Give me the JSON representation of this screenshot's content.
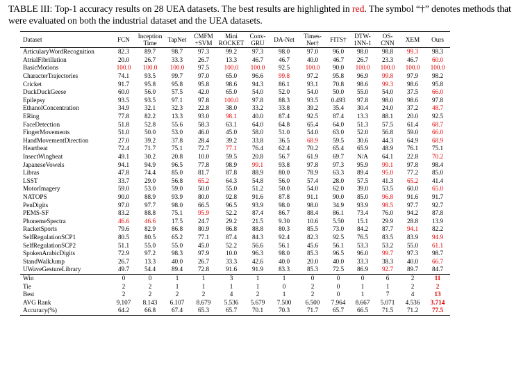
{
  "caption": {
    "text1": "TABLE III: Top-1 accuracy results on 28 UEA datasets. The best results are highlighted in ",
    "red_word": "red",
    "text2": ". The symbol “†” denotes methods that were evaluated on both the industrial dataset and the UEA datasets."
  },
  "header": [
    "Dataset",
    "FCN",
    "Inception\nTime",
    "TapNet",
    "CMFM\n+SVM",
    "Mini\nROCKET",
    "Conv-\nGRU",
    "DA-Net",
    "Times-\nNet†",
    "FITS†",
    "DTW-\n1NN-1",
    "OS-\nCNN",
    "XEM",
    "Ours"
  ],
  "rows": [
    {
      "name": "ArticularyWordRecognition",
      "v": [
        "82.3",
        "89.7",
        "98.7",
        "97.3",
        "99.2",
        "97.3",
        "98.0",
        "97.0",
        "96.0",
        "98.0",
        "98.8",
        "99.3",
        "98.3"
      ],
      "red": [
        11
      ]
    },
    {
      "name": "AtrialFibrillation",
      "v": [
        "20.0",
        "26.7",
        "33.3",
        "26.7",
        "13.3",
        "46.7",
        "46.7",
        "40.0",
        "46.7",
        "26.7",
        "23.3",
        "46.7",
        "60.0"
      ],
      "red": [
        12
      ]
    },
    {
      "name": "BasicMotions",
      "v": [
        "100.0",
        "100.0",
        "100.0",
        "97.5",
        "100.0",
        "100.0",
        "92.5",
        "100.0",
        "90.0",
        "100.0",
        "100.0",
        "100.0",
        "100.0"
      ],
      "red": [
        0,
        1,
        2,
        4,
        5,
        7,
        9,
        10,
        11,
        12
      ]
    },
    {
      "name": "CharacterTrajectories",
      "v": [
        "74.1",
        "93.5",
        "99.7",
        "97.0",
        "65.0",
        "96.6",
        "99.8",
        "97.2",
        "95.8",
        "96.9",
        "99.8",
        "97.9",
        "98.2"
      ],
      "red": [
        6,
        10
      ]
    },
    {
      "name": "Cricket",
      "v": [
        "91.7",
        "95.8",
        "95.8",
        "95.8",
        "98.6",
        "94.3",
        "86.1",
        "93.1",
        "70.8",
        "98.6",
        "99.3",
        "98.6",
        "95.8"
      ],
      "red": [
        10
      ]
    },
    {
      "name": "DuckDuckGeese",
      "v": [
        "60.0",
        "56.0",
        "57.5",
        "42.0",
        "65.0",
        "54.0",
        "52.0",
        "54.0",
        "50.0",
        "55.0",
        "54.0",
        "37.5",
        "66.0"
      ],
      "red": [
        12
      ]
    },
    {
      "name": "Epilepsy",
      "v": [
        "93.5",
        "93.5",
        "97.1",
        "97.8",
        "100.0",
        "97.8",
        "88.3",
        "93.5",
        "0.493",
        "97.8",
        "98.0",
        "98.6",
        "97.8"
      ],
      "red": [
        4
      ]
    },
    {
      "name": "EthanolConcentration",
      "v": [
        "34.9",
        "32.1",
        "32.3",
        "22.8",
        "38.0",
        "33.2",
        "33.8",
        "39.2",
        "35.4",
        "30.4",
        "24.0",
        "37.2",
        "48.7"
      ],
      "red": [
        12
      ]
    },
    {
      "name": "ERing",
      "v": [
        "77.8",
        "82.2",
        "13.3",
        "93.0",
        "98.1",
        "40.0",
        "87.4",
        "92.5",
        "87.4",
        "13.3",
        "88.1",
        "20.0",
        "92.5"
      ],
      "red": [
        4
      ]
    },
    {
      "name": "FaceDetection",
      "v": [
        "51.8",
        "52.8",
        "55.6",
        "58.3",
        "63.1",
        "64.0",
        "64.8",
        "65.4",
        "64.0",
        "51.3",
        "57.5",
        "61.4",
        "68.7"
      ],
      "red": [
        12
      ]
    },
    {
      "name": "FingerMovements",
      "v": [
        "51.0",
        "50.0",
        "53.0",
        "46.0",
        "45.0",
        "58.0",
        "51.0",
        "54.0",
        "63.0",
        "52.0",
        "56.8",
        "59.0",
        "66.0"
      ],
      "red": [
        12
      ]
    },
    {
      "name": "HandMovementDirection",
      "v": [
        "27.0",
        "39.2",
        "37.8",
        "28.4",
        "39.2",
        "33.8",
        "36.5",
        "68.9",
        "59.5",
        "30.6",
        "44.3",
        "64.9",
        "68.9"
      ],
      "red": [
        7,
        12
      ]
    },
    {
      "name": "Heartbeat",
      "v": [
        "72.4",
        "71.7",
        "75.1",
        "72.7",
        "77.1",
        "76.4",
        "62.4",
        "70.2",
        "65.4",
        "65.9",
        "48.9",
        "76.1",
        "75.1"
      ],
      "red": [
        4
      ]
    },
    {
      "name": "InsectWingbeat",
      "v": [
        "49.1",
        "30.2",
        "20.8",
        "10.0",
        "59.5",
        "20.8",
        "56.7",
        "61.9",
        "69.7",
        "N/A",
        "64.1",
        "22.8",
        "70.2"
      ],
      "red": [
        12
      ]
    },
    {
      "name": "JapaneseVowels",
      "v": [
        "94.1",
        "94.9",
        "96.5",
        "77.8",
        "98.9",
        "99.1",
        "93.8",
        "97.8",
        "97.3",
        "95.9",
        "99.1",
        "97.8",
        "98.4"
      ],
      "red": [
        5,
        10
      ]
    },
    {
      "name": "Libras",
      "v": [
        "47.8",
        "74.4",
        "85.0",
        "81.7",
        "87.8",
        "88.9",
        "80.0",
        "78.9",
        "63.3",
        "89.4",
        "95.0",
        "77.2",
        "85.0"
      ],
      "red": [
        10
      ]
    },
    {
      "name": "LSST",
      "v": [
        "33.7",
        "29.0",
        "56.8",
        "65.2",
        "64.3",
        "54.8",
        "56.0",
        "57.4",
        "28.0",
        "57.5",
        "41.3",
        "65.2",
        "41.4"
      ],
      "red": [
        3,
        11
      ]
    },
    {
      "name": "MotorImagery",
      "v": [
        "59.0",
        "53.0",
        "59.0",
        "50.0",
        "55.0",
        "51.2",
        "50.0",
        "54.0",
        "62.0",
        "39.0",
        "53.5",
        "60.0",
        "65.0"
      ],
      "red": [
        12
      ]
    },
    {
      "name": "NATOPS",
      "v": [
        "90.0",
        "88.9",
        "93.9",
        "80.0",
        "92.8",
        "91.6",
        "87.8",
        "91.1",
        "90.0",
        "85.0",
        "96.8",
        "91.6",
        "91.7"
      ],
      "red": [
        10
      ]
    },
    {
      "name": "PenDigits",
      "v": [
        "97.0",
        "97.7",
        "98.0",
        "66.5",
        "96.5",
        "93.9",
        "98.0",
        "98.0",
        "34.9",
        "93.9",
        "98.5",
        "97.7",
        "92.7"
      ],
      "red": [
        10
      ]
    },
    {
      "name": "PEMS-SF",
      "v": [
        "83.2",
        "88.8",
        "75.1",
        "95.9",
        "52.2",
        "87.4",
        "86.7",
        "88.4",
        "86.1",
        "73.4",
        "76.0",
        "94.2",
        "87.8"
      ],
      "red": [
        3
      ]
    },
    {
      "name": "PhonemeSpectra",
      "v": [
        "46.6",
        "46.6",
        "17.5",
        "24.7",
        "29.2",
        "21.5",
        "9.30",
        "10.6",
        "5.50",
        "15.1",
        "29.9",
        "28.8",
        "13.9"
      ],
      "red": [
        0,
        1
      ]
    },
    {
      "name": "RacketSports",
      "v": [
        "79.6",
        "82.9",
        "86.8",
        "80.9",
        "86.8",
        "88.8",
        "80.3",
        "85.5",
        "73.0",
        "84.2",
        "87.7",
        "94.1",
        "82.2"
      ],
      "red": [
        11
      ]
    },
    {
      "name": "SelfRegulationSCP1",
      "v": [
        "80.5",
        "80.5",
        "65.2",
        "77.1",
        "87.4",
        "84.3",
        "92.4",
        "82.3",
        "92.5",
        "76.5",
        "83.5",
        "83.9",
        "94.9"
      ],
      "red": [
        12
      ]
    },
    {
      "name": "SelfRegulationSCP2",
      "v": [
        "51.1",
        "55.0",
        "55.0",
        "45.0",
        "52.2",
        "56.6",
        "56.1",
        "45.6",
        "56.1",
        "53.3",
        "53.2",
        "55.0",
        "61.1"
      ],
      "red": [
        12
      ]
    },
    {
      "name": "SpokenArabicDigits",
      "v": [
        "72.9",
        "97.2",
        "98.3",
        "97.9",
        "10.0",
        "96.3",
        "98.0",
        "85.3",
        "96.5",
        "96.0",
        "99.7",
        "97.3",
        "98.7"
      ],
      "red": [
        10
      ]
    },
    {
      "name": "StandWalkJump",
      "v": [
        "26.7",
        "13.3",
        "40.0",
        "26.7",
        "33.3",
        "42.6",
        "40.0",
        "20.0",
        "40.0",
        "33.3",
        "38.3",
        "40.0",
        "66.7"
      ],
      "red": [
        12
      ]
    },
    {
      "name": "UWaveGestureLibrary",
      "v": [
        "49.7",
        "54.4",
        "89.4",
        "72.8",
        "91.6",
        "91.9",
        "83.3",
        "85.3",
        "72.5",
        "86.9",
        "92.7",
        "89.7",
        "84.7"
      ],
      "red": [
        10
      ]
    }
  ],
  "summary": [
    {
      "name": "Win",
      "v": [
        "0",
        "0",
        "1",
        "1",
        "3",
        "1",
        "1",
        "0",
        "0",
        "0",
        "6",
        "2",
        "11"
      ]
    },
    {
      "name": "Tie",
      "v": [
        "2",
        "2",
        "1",
        "1",
        "1",
        "1",
        "0",
        "2",
        "0",
        "1",
        "1",
        "2",
        "2"
      ]
    },
    {
      "name": "Best",
      "v": [
        "2",
        "2",
        "2",
        "2",
        "4",
        "2",
        "1",
        "2",
        "0",
        "1",
        "7",
        "4",
        "13"
      ]
    },
    {
      "name": "AVG Rank",
      "v": [
        "9.107",
        "8.143",
        "6.107",
        "8.679",
        "5.536",
        "5.679",
        "7.500",
        "6.500",
        "7.964",
        "8.667",
        "5.071",
        "4.536",
        "3.714"
      ]
    },
    {
      "name": "Accuracy(%)",
      "v": [
        "64.2",
        "66.8",
        "67.4",
        "65.3",
        "65.7",
        "70.1",
        "70.3",
        "71.7",
        "65.7",
        "66.5",
        "71.5",
        "71.2",
        "77.5"
      ]
    }
  ]
}
